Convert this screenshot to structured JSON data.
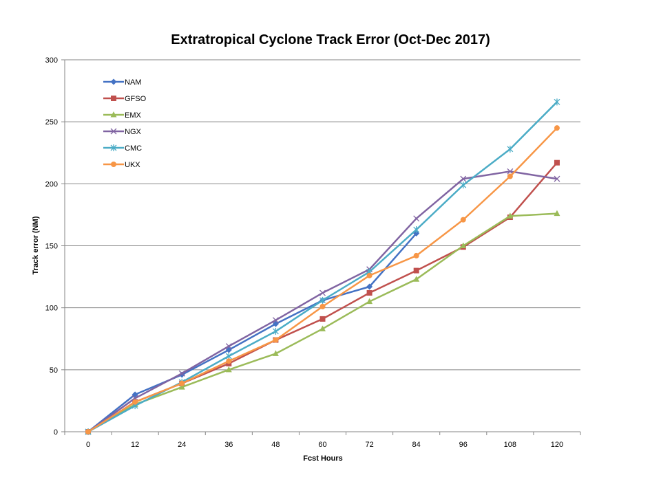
{
  "chart_data": {
    "type": "line",
    "title": "Extratropical Cyclone Track Error (Oct-Dec 2017)",
    "xlabel": "Fcst Hours",
    "ylabel": "Track error  (NM)",
    "categories": [
      "0",
      "12",
      "24",
      "36",
      "48",
      "60",
      "72",
      "84",
      "96",
      "108",
      "120"
    ],
    "ylim": [
      0,
      300
    ],
    "yticks": [
      0,
      50,
      100,
      150,
      200,
      250,
      300
    ],
    "grid": "horizontal",
    "legend": "top-left",
    "series": [
      {
        "name": "NAM",
        "color": "#4472C4",
        "marker": "diamond",
        "values": [
          0,
          30,
          46,
          66,
          87,
          106,
          117,
          160,
          null,
          null,
          null
        ]
      },
      {
        "name": "GFSO",
        "color": "#C0504D",
        "marker": "square",
        "values": [
          0,
          24,
          39,
          55,
          74,
          91,
          112,
          130,
          149,
          173,
          217
        ]
      },
      {
        "name": "EMX",
        "color": "#9BBB59",
        "marker": "triangle",
        "values": [
          0,
          22,
          36,
          50,
          63,
          83,
          105,
          123,
          150,
          174,
          176
        ]
      },
      {
        "name": "NGX",
        "color": "#8064A2",
        "marker": "x",
        "values": [
          0,
          27,
          47,
          69,
          90,
          112,
          131,
          172,
          204,
          210,
          204
        ]
      },
      {
        "name": "CMC",
        "color": "#4BACC6",
        "marker": "star",
        "values": [
          0,
          21,
          40,
          61,
          81,
          106,
          129,
          163,
          199,
          228,
          266
        ]
      },
      {
        "name": "UKX",
        "color": "#F79646",
        "marker": "circle",
        "values": [
          0,
          24,
          39,
          57,
          74,
          101,
          126,
          142,
          171,
          206,
          245
        ]
      }
    ]
  }
}
